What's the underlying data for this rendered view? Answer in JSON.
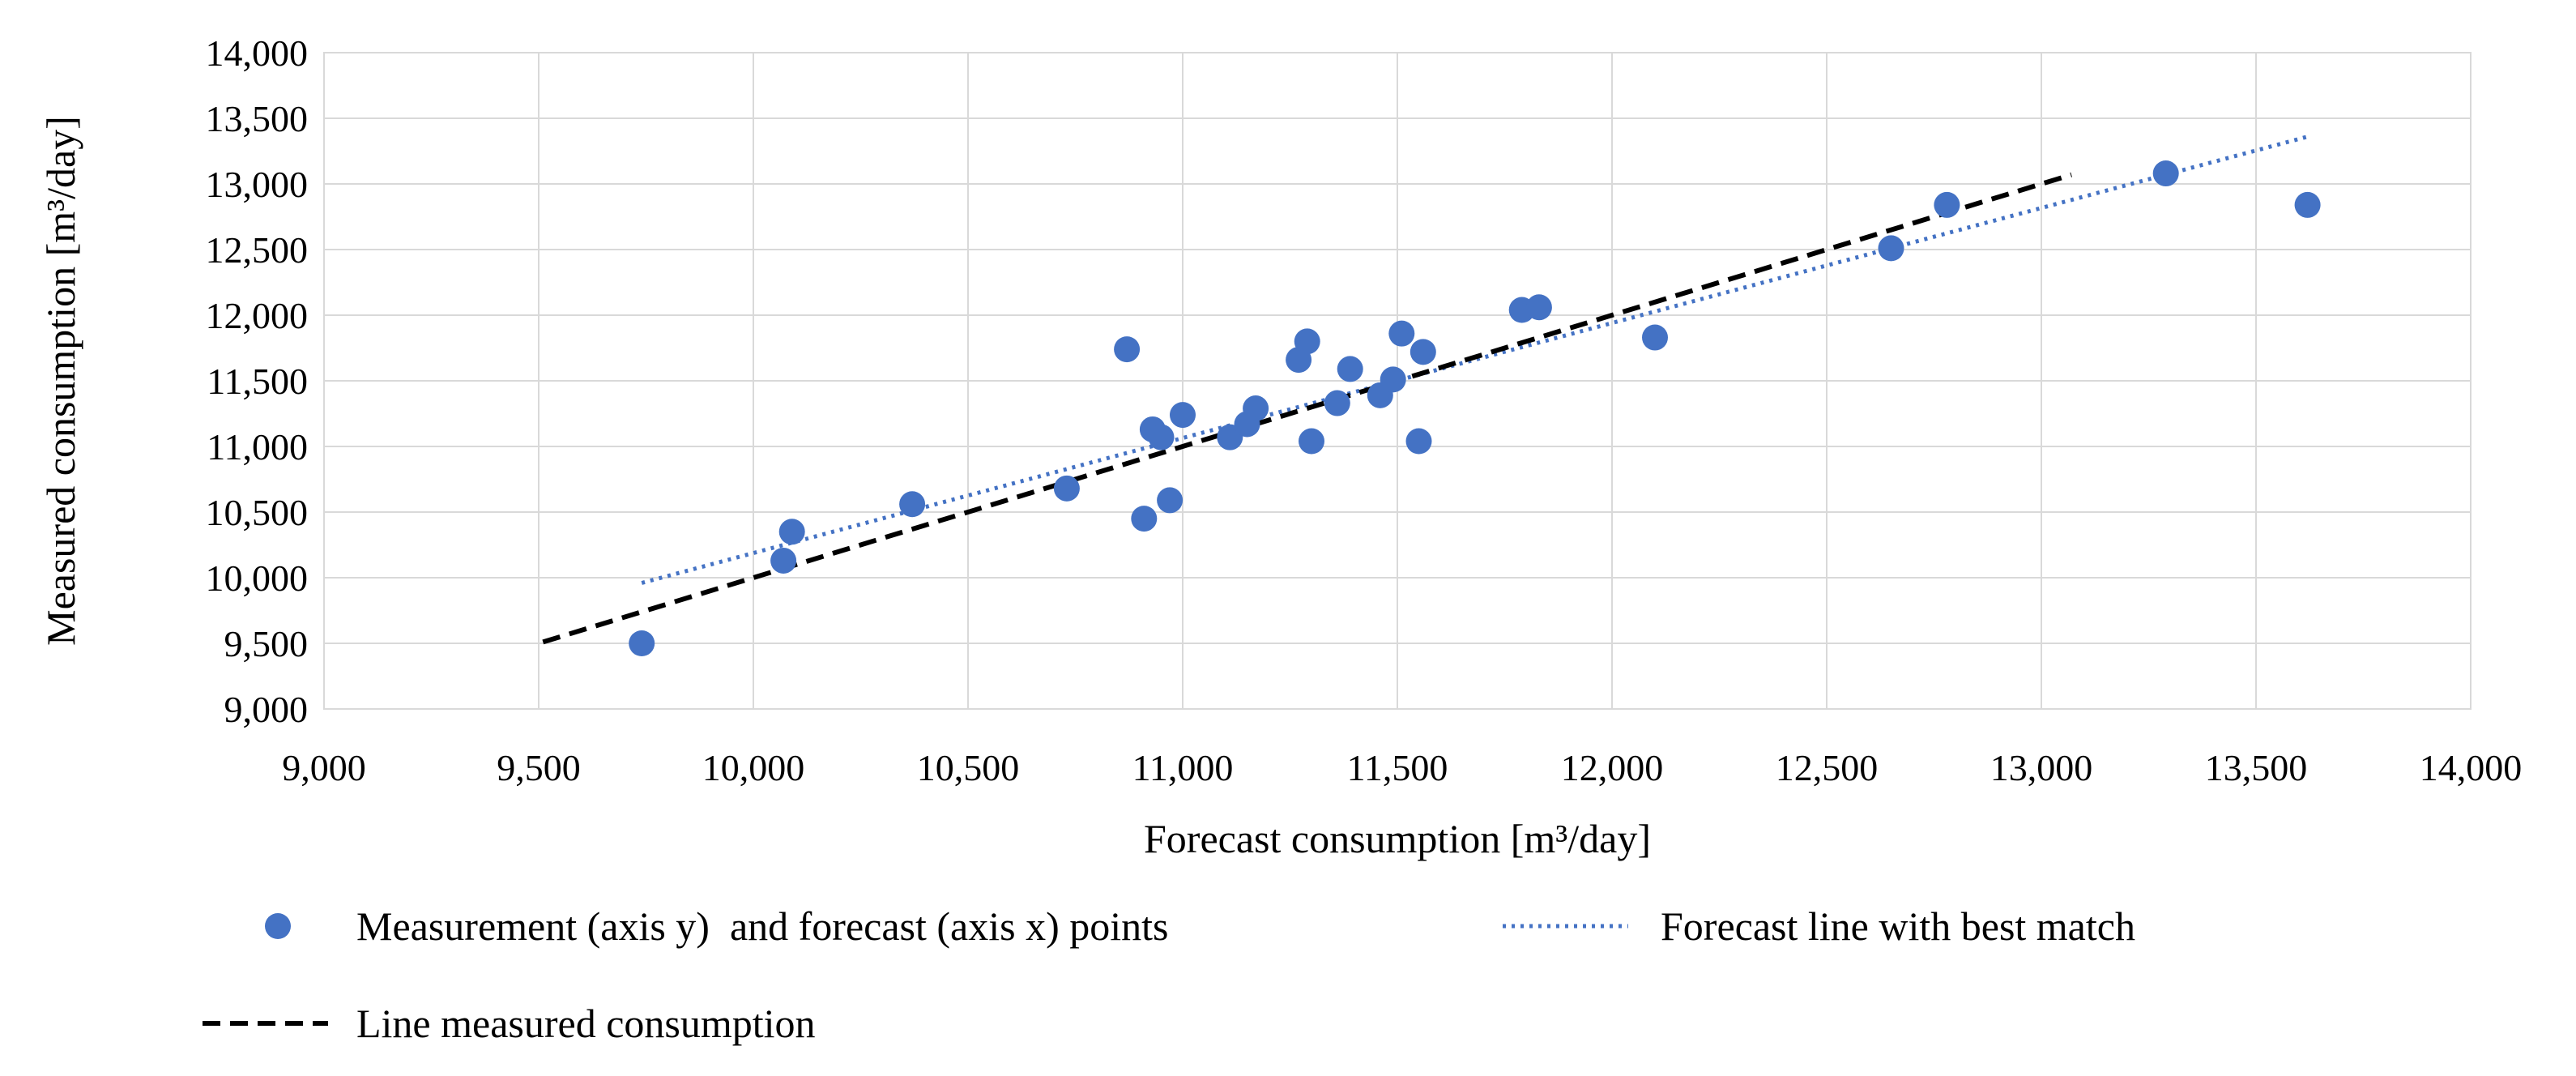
{
  "chart_data": {
    "type": "scatter",
    "xlabel": "Forecast consumption [m³/day]",
    "ylabel": "Measured consumption [m³/day]",
    "xlim": [
      9000,
      14000
    ],
    "ylim": [
      9000,
      14000
    ],
    "x_ticks": [
      "9,000",
      "9,500",
      "10,000",
      "10,500",
      "11,000",
      "11,500",
      "12,000",
      "12,500",
      "13,000",
      "13,500",
      "14,000"
    ],
    "y_ticks": [
      "9,000",
      "9,500",
      "10,000",
      "10,500",
      "11,000",
      "11,500",
      "12,000",
      "12,500",
      "13,000",
      "13,500",
      "14,000"
    ],
    "grid": true,
    "legend_position": "bottom",
    "series": [
      {
        "name": "Measurement (axis y)  and forecast (axis x) points",
        "kind": "scatter",
        "color": "#4472c4",
        "points": [
          [
            9740,
            9500
          ],
          [
            10070,
            10130
          ],
          [
            10090,
            10350
          ],
          [
            10370,
            10560
          ],
          [
            10730,
            10680
          ],
          [
            10870,
            11740
          ],
          [
            10910,
            10450
          ],
          [
            10930,
            11130
          ],
          [
            10950,
            11070
          ],
          [
            10970,
            10590
          ],
          [
            11000,
            11240
          ],
          [
            11110,
            11070
          ],
          [
            11150,
            11170
          ],
          [
            11170,
            11290
          ],
          [
            11270,
            11660
          ],
          [
            11290,
            11800
          ],
          [
            11300,
            11040
          ],
          [
            11360,
            11330
          ],
          [
            11390,
            11590
          ],
          [
            11460,
            11390
          ],
          [
            11490,
            11510
          ],
          [
            11510,
            11860
          ],
          [
            11550,
            11040
          ],
          [
            11560,
            11720
          ],
          [
            11790,
            12040
          ],
          [
            11830,
            12060
          ],
          [
            12100,
            11830
          ],
          [
            12650,
            12510
          ],
          [
            12780,
            12840
          ],
          [
            13290,
            13080
          ],
          [
            13620,
            12840
          ]
        ]
      },
      {
        "name": "Forecast line with best match",
        "kind": "line",
        "style": "dotted",
        "color": "#4472c4",
        "points": [
          [
            9740,
            9960
          ],
          [
            13620,
            13360
          ]
        ]
      },
      {
        "name": "Line measured consumption",
        "kind": "line",
        "style": "dashed",
        "color": "#000000",
        "points": [
          [
            9510,
            9510
          ],
          [
            13070,
            13070
          ]
        ]
      }
    ]
  }
}
